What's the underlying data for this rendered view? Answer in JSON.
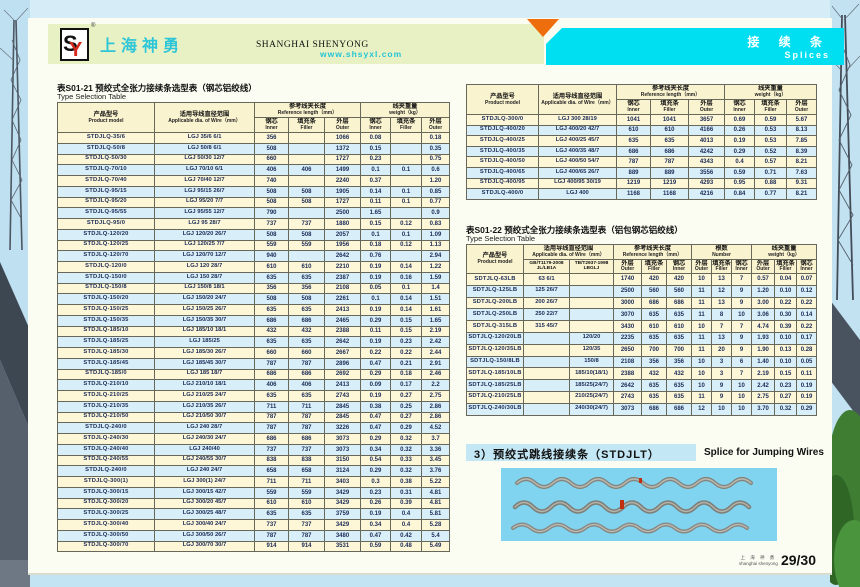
{
  "colors": {
    "accent_cyan": "#00dff2",
    "accent_orange": "#ee6d0c",
    "brand_cyan": "#2cc6d8",
    "row_cream": "#fdf7d8",
    "row_blue": "#d8effa",
    "header_bar_green": "#e8f1c4"
  },
  "header": {
    "logo_monogram": "SY",
    "registered_mark": "®",
    "brand_cn": "上海神勇",
    "brand_en": "SHANGHAI SHENYONG",
    "website": "www.shsyxl.com",
    "tab_cn": "接 续 条",
    "tab_en": "Splices"
  },
  "labels": {
    "model_cn": "产品型号",
    "model_en": "Product model",
    "wire_cn": "适用导线直径范围",
    "wire_en": "Applicable dia. of Wire（mm）",
    "ref_cn": "参考线夹长度",
    "ref_en": "Reference length（mm）",
    "wt_cn": "线夹重量",
    "wt_en": "weight（kg）",
    "num_cn": "根数",
    "num_en": "Number",
    "inner_cn": "钢芯",
    "inner_en": "Inner",
    "filler_cn": "填充条",
    "filler_en": "Filler",
    "outer_cn": "外层",
    "outer_en": "Outer",
    "gb_l1": "GB/T1179-2008",
    "gb_l2": "JL/LB1A",
    "tb_l1": "TB/T2937-1998",
    "tb_l2": "LBGLJ"
  },
  "table1": {
    "title_cn": "表S01-21 预绞式全张力接续条选型表（钢芯铝绞线）",
    "title_en": "Type Selection Table",
    "rows": [
      [
        "STDJLQ-35/6",
        "LGJ 35/6 6/1",
        "356",
        "",
        "1066",
        "0.08",
        "",
        "0.18"
      ],
      [
        "STDJLQ-50/8",
        "LGJ 50/8 6/1",
        "508",
        "",
        "1372",
        "0.15",
        "",
        "0.35"
      ],
      [
        "STDJLQ-50/30",
        "LGJ 50/30 12/7",
        "660",
        "",
        "1727",
        "0.23",
        "",
        "0.75"
      ],
      [
        "STDJLQ-70/10",
        "LGJ 70/10 6/1",
        "406",
        "406",
        "1499",
        "0.1",
        "0.1",
        "0.6"
      ],
      [
        "STDJLQ-70/40",
        "LGJ 70/40 12/7",
        "740",
        "",
        "2240",
        "0.37",
        "",
        "1.20"
      ],
      [
        "STDJLQ-95/15",
        "LGJ 95/15 26/7",
        "508",
        "508",
        "1905",
        "0.14",
        "0.1",
        "0.85"
      ],
      [
        "STDJLQ-95/20",
        "LGJ 95/20 7/7",
        "508",
        "508",
        "1727",
        "0.11",
        "0.1",
        "0.77"
      ],
      [
        "STDJLQ-95/55",
        "LGJ 95/55 12/7",
        "790",
        "",
        "2500",
        "1.65",
        "",
        "0.9"
      ],
      [
        "STDJLQ-95/0",
        "LGJ 95 28/7",
        "737",
        "737",
        "1880",
        "0.15",
        "0.12",
        "0.83"
      ],
      [
        "STDJLQ-120/20",
        "LGJ 120/20 26/7",
        "508",
        "508",
        "2057",
        "0.1",
        "0.1",
        "1.09"
      ],
      [
        "STDJLQ-120/25",
        "LGJ 120/25 7/7",
        "559",
        "559",
        "1956",
        "0.18",
        "0.12",
        "1.13"
      ],
      [
        "STDJLQ-120/70",
        "LGJ 120/70 12/7",
        "940",
        "",
        "2642",
        "0.76",
        "",
        "2.94"
      ],
      [
        "STDJLQ-120/0",
        "LGJ 120 28/7",
        "610",
        "610",
        "2210",
        "0.19",
        "0.14",
        "1.22"
      ],
      [
        "STDJLQ-150/0",
        "LGJ 150 28/7",
        "635",
        "635",
        "2387",
        "0.19",
        "0.16",
        "1.59"
      ],
      [
        "STDJLQ-150/8",
        "LGJ 150/8 18/1",
        "356",
        "356",
        "2108",
        "0.05",
        "0.1",
        "1.4"
      ],
      [
        "STDJLQ-150/20",
        "LGJ 150/20 24/7",
        "508",
        "508",
        "2261",
        "0.1",
        "0.14",
        "1.51"
      ],
      [
        "STDJLQ-150/25",
        "LGJ 150/25 26/7",
        "635",
        "635",
        "2413",
        "0.19",
        "0.14",
        "1.61"
      ],
      [
        "STDJLQ-150/35",
        "LGJ 150/35 30/7",
        "686",
        "686",
        "2465",
        "0.29",
        "0.15",
        "1.65"
      ],
      [
        "STDJLQ-185/10",
        "LGJ 185/10 18/1",
        "432",
        "432",
        "2388",
        "0.11",
        "0.15",
        "2.19"
      ],
      [
        "STDJLQ-185/25",
        "LGJ 185/25",
        "635",
        "635",
        "2642",
        "0.19",
        "0.23",
        "2.42"
      ],
      [
        "STDJLQ-185/30",
        "LGJ 185/30 26/7",
        "660",
        "660",
        "2667",
        "0.22",
        "0.22",
        "2.44"
      ],
      [
        "STDJLQ-185/45",
        "LGJ 185/45 30/7",
        "787",
        "787",
        "2896",
        "0.47",
        "0.21",
        "2.91"
      ],
      [
        "STDJLQ-185/0",
        "LGJ 185 18/7",
        "686",
        "686",
        "2692",
        "0.29",
        "0.18",
        "2.46"
      ],
      [
        "STDJLQ-210/10",
        "LGJ 210/10 18/1",
        "406",
        "406",
        "2413",
        "0.09",
        "0.17",
        "2.2"
      ],
      [
        "STDJLQ-210/25",
        "LGJ 210/25 24/7",
        "635",
        "635",
        "2743",
        "0.19",
        "0.27",
        "2.75"
      ],
      [
        "STDJLQ-210/35",
        "LGJ 210/35 26/7",
        "711",
        "711",
        "2845",
        "0.38",
        "0.25",
        "2.86"
      ],
      [
        "STDJLQ-210/50",
        "LGJ 210/50 30/7",
        "787",
        "787",
        "2845",
        "0.47",
        "0.27",
        "2.86"
      ],
      [
        "STDJLQ-240/0",
        "LGJ 240 28/7",
        "787",
        "787",
        "3226",
        "0.47",
        "0.29",
        "4.52"
      ],
      [
        "STDJLQ-240/30",
        "LGJ 240/30 24/7",
        "686",
        "686",
        "3073",
        "0.29",
        "0.32",
        "3.7"
      ],
      [
        "STDJLQ-240/40",
        "LGJ 240/40",
        "737",
        "737",
        "3073",
        "0.34",
        "0.32",
        "3.36"
      ],
      [
        "STDJLQ-240/55",
        "LGJ 240/55 30/7",
        "838",
        "838",
        "3150",
        "0.54",
        "0.33",
        "3.45"
      ],
      [
        "STDJLQ-240/0",
        "LGJ 240 24/7",
        "658",
        "658",
        "3124",
        "0.29",
        "0.32",
        "3.76"
      ],
      [
        "STDJLQ-300(1)",
        "LGJ 300(1) 24/7",
        "711",
        "711",
        "3403",
        "0.3",
        "0.38",
        "5.22"
      ],
      [
        "STDJLQ-300/15",
        "LGJ 300/15 42/7",
        "559",
        "559",
        "3429",
        "0.23",
        "0.31",
        "4.81"
      ],
      [
        "STDJLQ-300/20",
        "LGJ 300/20 45/7",
        "610",
        "610",
        "3429",
        "0.26",
        "0.39",
        "4.81"
      ],
      [
        "STDJLQ-300/25",
        "LGJ 300/25 48/7",
        "635",
        "635",
        "3759",
        "0.19",
        "0.4",
        "5.81"
      ],
      [
        "STDJLQ-300/40",
        "LGJ 300/40 24/7",
        "737",
        "737",
        "3429",
        "0.34",
        "0.4",
        "5.28"
      ],
      [
        "STDJLQ-300/50",
        "LGJ 300/50 26/7",
        "787",
        "787",
        "3480",
        "0.47",
        "0.42",
        "5.4"
      ],
      [
        "STDJLQ-300/70",
        "LGJ 300/70 30/7",
        "914",
        "914",
        "3531",
        "0.59",
        "0.48",
        "5.49"
      ]
    ]
  },
  "table1_cont": {
    "rows": [
      [
        "STDJLQ-300/0",
        "LGJ 300 28/19",
        "1041",
        "1041",
        "3657",
        "0.69",
        "0.59",
        "5.67"
      ],
      [
        "STDJLQ-400/20",
        "LGJ 400/20 42/7",
        "610",
        "610",
        "4166",
        "0.26",
        "0.53",
        "8.13"
      ],
      [
        "STDJLQ-400/25",
        "LGJ 400/25 45/7",
        "635",
        "635",
        "4013",
        "0.19",
        "0.53",
        "7.85"
      ],
      [
        "STDJLQ-400/35",
        "LGJ 400/35 48/7",
        "686",
        "686",
        "4242",
        "0.29",
        "0.52",
        "8.39"
      ],
      [
        "STDJLQ-400/50",
        "LGJ 400/50 54/7",
        "787",
        "787",
        "4343",
        "0.4",
        "0.57",
        "8.21"
      ],
      [
        "STDJLQ-400/65",
        "LGJ 400/65 26/7",
        "889",
        "889",
        "3556",
        "0.59",
        "0.71",
        "7.63"
      ],
      [
        "STDJLQ-400/95",
        "LGJ 400/95 30/19",
        "1219",
        "1219",
        "4293",
        "0.95",
        "0.88",
        "9.31"
      ],
      [
        "STDJLQ-400/0",
        "LGJ 400",
        "1168",
        "1168",
        "4216",
        "0.84",
        "0.77",
        "8.21"
      ]
    ]
  },
  "table2": {
    "title_cn": "表S01-22 预绞式全张力接续条选型表（铝包钢芯铝绞线）",
    "title_en": "Type Selection Table",
    "rows": [
      [
        "SDTJLQ-63LB",
        "63 6/1",
        "",
        "1740",
        "420",
        "420",
        "10",
        "13",
        "7",
        "0.57",
        "0.04",
        "0.07"
      ],
      [
        "SDTJLQ-125LB",
        "125 26/7",
        "",
        "2500",
        "560",
        "560",
        "11",
        "12",
        "9",
        "1.20",
        "0.10",
        "0.12"
      ],
      [
        "SDTJLQ-200LB",
        "200 26/7",
        "",
        "3000",
        "686",
        "686",
        "11",
        "13",
        "9",
        "3.00",
        "0.22",
        "0.22"
      ],
      [
        "SDTJLQ-250LB",
        "250 22/7",
        "",
        "3070",
        "635",
        "635",
        "11",
        "8",
        "10",
        "3.06",
        "0.30",
        "0.14"
      ],
      [
        "SDTJLQ-315LB",
        "315 45/7",
        "",
        "3430",
        "610",
        "610",
        "10",
        "7",
        "7",
        "4.74",
        "0.39",
        "0.22"
      ],
      [
        "SDTJLQ-120/20LB",
        "",
        "120/20",
        "2235",
        "635",
        "635",
        "11",
        "13",
        "9",
        "1.93",
        "0.10",
        "0.17"
      ],
      [
        "SDTJLQ-120/35LB",
        "",
        "120/35",
        "2650",
        "700",
        "700",
        "11",
        "20",
        "9",
        "1.90",
        "0.13",
        "0.28"
      ],
      [
        "SDTJLQ-150/8LB",
        "",
        "150/8",
        "2108",
        "356",
        "356",
        "10",
        "3",
        "6",
        "1.40",
        "0.10",
        "0.05"
      ],
      [
        "SDTJLQ-185/10LB",
        "",
        "185/10(18/1)",
        "2388",
        "432",
        "432",
        "10",
        "3",
        "7",
        "2.19",
        "0.15",
        "0.11"
      ],
      [
        "SDTJLQ-185/25LB",
        "",
        "185/25(24/7)",
        "2642",
        "635",
        "635",
        "10",
        "9",
        "10",
        "2.42",
        "0.23",
        "0.19"
      ],
      [
        "SDTJLQ-210/25LB",
        "",
        "210/25(24/7)",
        "2743",
        "635",
        "635",
        "11",
        "9",
        "10",
        "2.75",
        "0.27",
        "0.19"
      ],
      [
        "SDTJLQ-240/30LB",
        "",
        "240/30(24/7)",
        "3073",
        "686",
        "686",
        "12",
        "10",
        "10",
        "3.70",
        "0.32",
        "0.29"
      ]
    ]
  },
  "section3": {
    "heading_cn": "3）预绞式跳线接续条（STDJLT）",
    "heading_en": "Splice for Jumping Wires"
  },
  "footer": {
    "company_cn": "上 海 神 勇",
    "company_en": "shanghai shenyong",
    "page": "29/30"
  }
}
